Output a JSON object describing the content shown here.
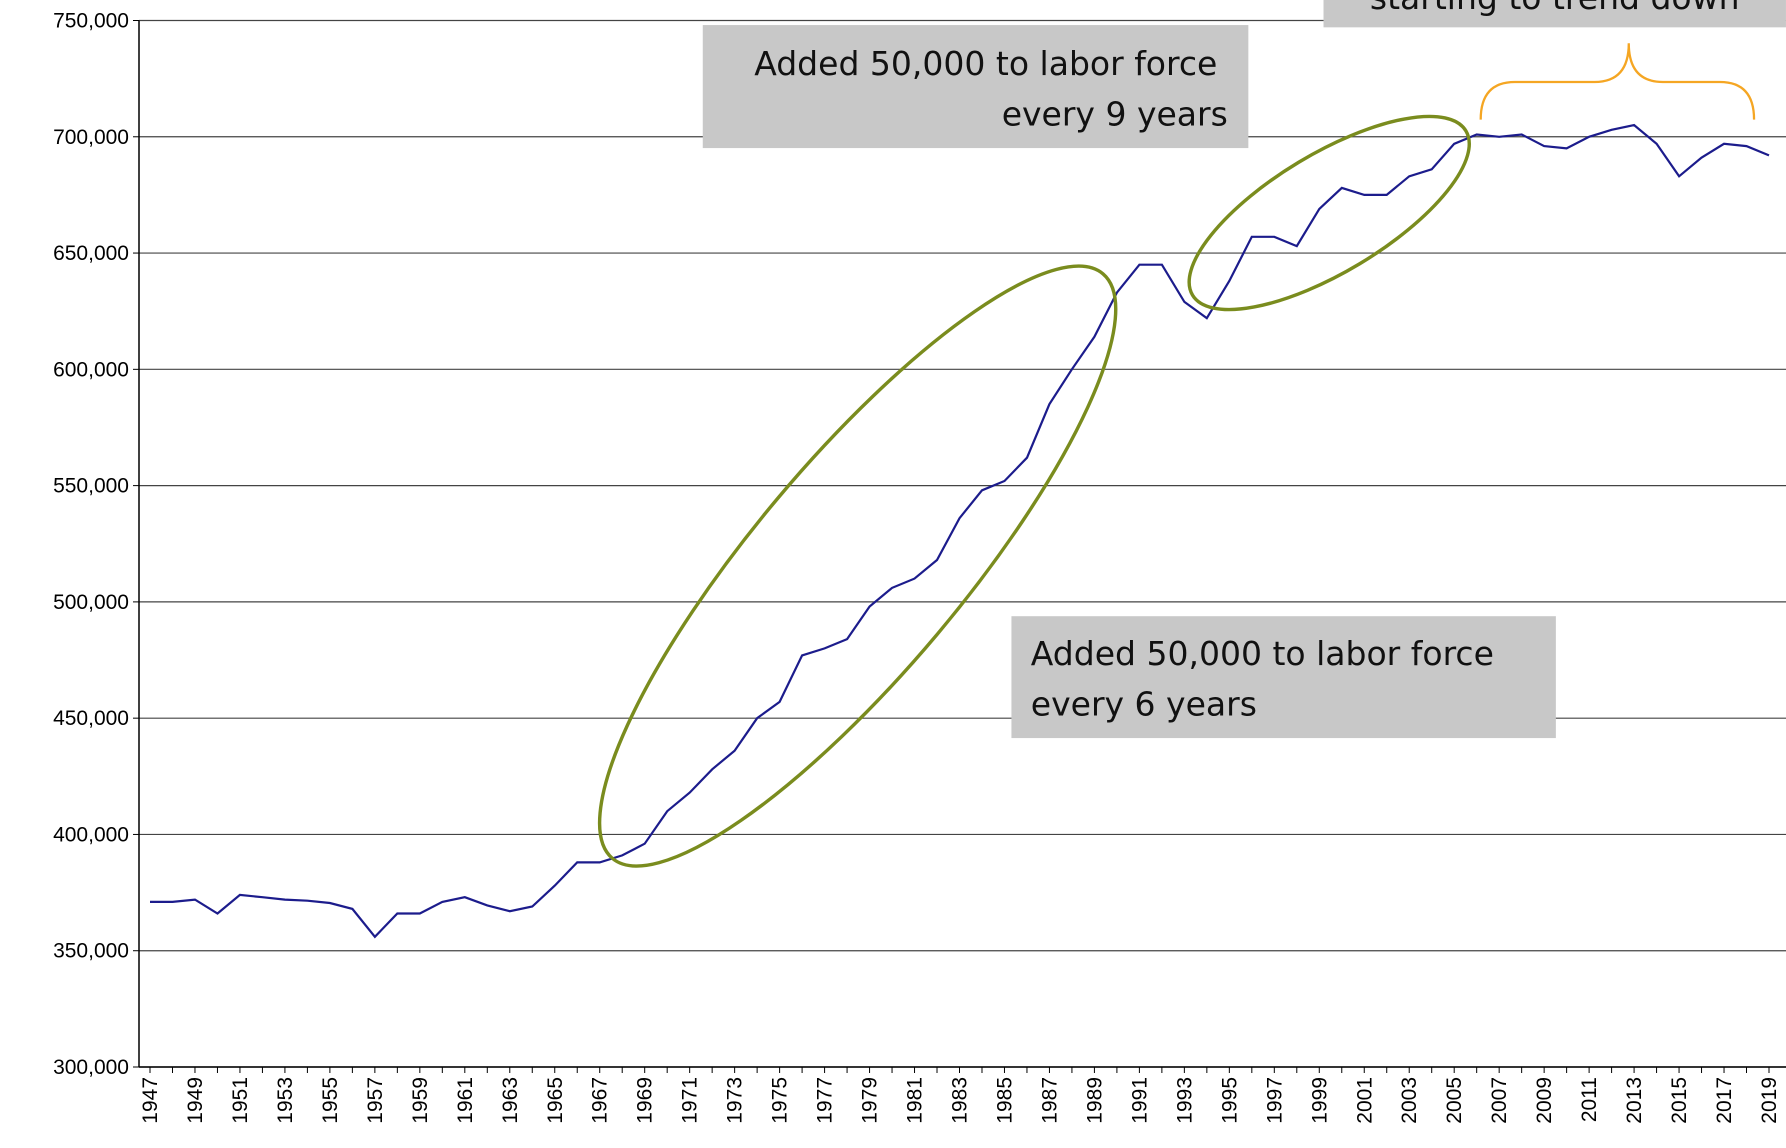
{
  "chart_data": {
    "type": "line",
    "categories": [
      "1947",
      null,
      "1949",
      null,
      "1951",
      null,
      "1953",
      null,
      "1955",
      null,
      "1957",
      null,
      "1959",
      null,
      "1961",
      null,
      "1963",
      null,
      "1965",
      null,
      "1967",
      null,
      "1969",
      null,
      "1971",
      null,
      "1973",
      null,
      "1975",
      null,
      "1977",
      null,
      "1979",
      null,
      "1981",
      null,
      "1983",
      null,
      "1985",
      null,
      "1987",
      null,
      "1989",
      null,
      "1991",
      null,
      "1993",
      null,
      "1995",
      null,
      "1997",
      null,
      "1999",
      null,
      "2001",
      null,
      "2003",
      null,
      "2005",
      null,
      "2007",
      null,
      "2009",
      null,
      "2011",
      null,
      "2013",
      null,
      "2015",
      null,
      "2017",
      null,
      "2019"
    ],
    "series": [
      {
        "color": "#1c1c8c",
        "values": [
          371000,
          371000,
          372000,
          366000,
          374000,
          373000,
          372000,
          371500,
          370500,
          368000,
          356000,
          366000,
          366000,
          371000,
          373000,
          369500,
          367000,
          369000,
          378000,
          388000,
          388000,
          391000,
          396000,
          410000,
          418000,
          428000,
          436000,
          450000,
          457000,
          477000,
          480000,
          484000,
          498000,
          506000,
          510000,
          518000,
          536000,
          548000,
          552000,
          562000,
          585000,
          600000,
          614000,
          633000,
          645000,
          645000,
          629000,
          622000,
          638000,
          657000,
          657000,
          653000,
          669000,
          678000,
          675000,
          675000,
          683000,
          686000,
          697000,
          701000,
          700000,
          701000,
          696000,
          695000,
          700000,
          703000,
          705000,
          697000,
          683000,
          691000,
          697000,
          696000,
          692000
        ]
      }
    ],
    "ylim": [
      300000,
      750000
    ],
    "yticks": [
      {
        "value": 300000,
        "label": "300,000"
      },
      {
        "value": 350000,
        "label": "350,000"
      },
      {
        "value": 400000,
        "label": "400,000"
      },
      {
        "value": 450000,
        "label": "450,000"
      },
      {
        "value": 500000,
        "label": "500,000"
      },
      {
        "value": 550000,
        "label": "550,000"
      },
      {
        "value": 600000,
        "label": "600,000"
      },
      {
        "value": 650000,
        "label": "650,000"
      },
      {
        "value": 700000,
        "label": "700,000"
      },
      {
        "value": 750000,
        "label": "750,000"
      }
    ],
    "grid": true,
    "annotations": [
      [
        "Added 50,000 to labor force",
        "every 9 years"
      ],
      [
        "Added 50,000 to labor force",
        "every 6 years"
      ],
      [
        "starting to trend down"
      ]
    ]
  }
}
